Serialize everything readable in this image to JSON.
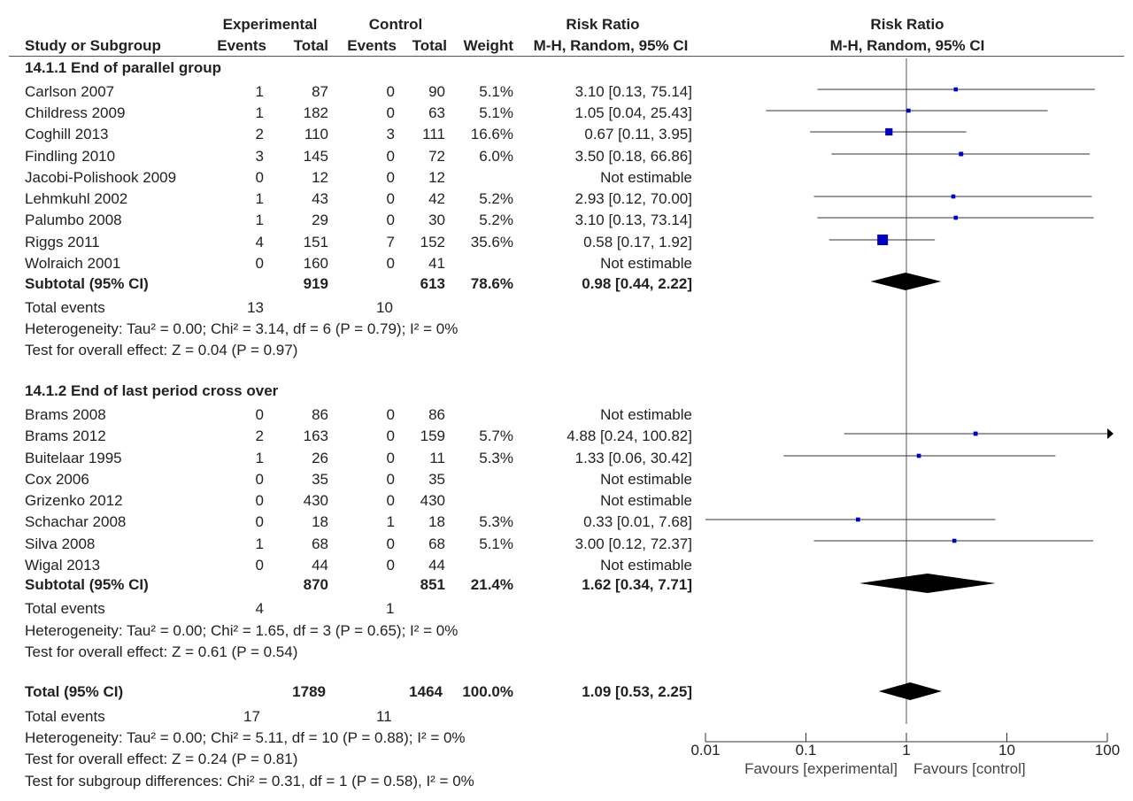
{
  "header": {
    "group1": "Experimental",
    "group2": "Control",
    "rr_title": "Risk Ratio",
    "rr_sub": "M-H, Random, 95% CI",
    "plot_title": "Risk Ratio",
    "plot_sub": "M-H, Random, 95% CI",
    "col_study": "Study or Subgroup",
    "col_e_events": "Events",
    "col_e_total": "Total",
    "col_c_events": "Events",
    "col_c_total": "Total",
    "col_weight": "Weight"
  },
  "subgroups": [
    {
      "title": "14.1.1 End of parallel group",
      "studies": [
        {
          "name": "Carlson 2007",
          "ee": "1",
          "et": "87",
          "ce": "0",
          "ct": "90",
          "w": "5.1%",
          "ci": "3.10 [0.13, 75.14]"
        },
        {
          "name": "Childress 2009",
          "ee": "1",
          "et": "182",
          "ce": "0",
          "ct": "63",
          "w": "5.1%",
          "ci": "1.05 [0.04, 25.43]"
        },
        {
          "name": "Coghill 2013",
          "ee": "2",
          "et": "110",
          "ce": "3",
          "ct": "111",
          "w": "16.6%",
          "ci": "0.67 [0.11, 3.95]"
        },
        {
          "name": "Findling 2010",
          "ee": "3",
          "et": "145",
          "ce": "0",
          "ct": "72",
          "w": "6.0%",
          "ci": "3.50 [0.18, 66.86]"
        },
        {
          "name": "Jacobi-Polishook 2009",
          "ee": "0",
          "et": "12",
          "ce": "0",
          "ct": "12",
          "w": "",
          "ci": "Not estimable"
        },
        {
          "name": "Lehmkuhl 2002",
          "ee": "1",
          "et": "43",
          "ce": "0",
          "ct": "42",
          "w": "5.2%",
          "ci": "2.93 [0.12, 70.00]"
        },
        {
          "name": "Palumbo 2008",
          "ee": "1",
          "et": "29",
          "ce": "0",
          "ct": "30",
          "w": "5.2%",
          "ci": "3.10 [0.13, 73.14]"
        },
        {
          "name": "Riggs 2011",
          "ee": "4",
          "et": "151",
          "ce": "7",
          "ct": "152",
          "w": "35.6%",
          "ci": "0.58 [0.17, 1.92]"
        },
        {
          "name": "Wolraich 2001",
          "ee": "0",
          "et": "160",
          "ce": "0",
          "ct": "41",
          "w": "",
          "ci": "Not estimable"
        }
      ],
      "subtotal": {
        "label": "Subtotal (95% CI)",
        "et": "919",
        "ct": "613",
        "w": "78.6%",
        "ci": "0.98 [0.44, 2.22]"
      },
      "events": {
        "label": "Total events",
        "e": "13",
        "c": "10"
      },
      "heterogeneity": "Heterogeneity: Tau² = 0.00; Chi² = 3.14, df = 6 (P = 0.79); I² = 0%",
      "overall": "Test for overall effect: Z = 0.04 (P = 0.97)"
    },
    {
      "title": "14.1.2 End of last period cross over",
      "studies": [
        {
          "name": "Brams 2008",
          "ee": "0",
          "et": "86",
          "ce": "0",
          "ct": "86",
          "w": "",
          "ci": "Not estimable"
        },
        {
          "name": "Brams 2012",
          "ee": "2",
          "et": "163",
          "ce": "0",
          "ct": "159",
          "w": "5.7%",
          "ci": "4.88 [0.24, 100.82]"
        },
        {
          "name": "Buitelaar 1995",
          "ee": "1",
          "et": "26",
          "ce": "0",
          "ct": "11",
          "w": "5.3%",
          "ci": "1.33 [0.06, 30.42]"
        },
        {
          "name": "Cox 2006",
          "ee": "0",
          "et": "35",
          "ce": "0",
          "ct": "35",
          "w": "",
          "ci": "Not estimable"
        },
        {
          "name": "Grizenko 2012",
          "ee": "0",
          "et": "430",
          "ce": "0",
          "ct": "430",
          "w": "",
          "ci": "Not estimable"
        },
        {
          "name": "Schachar 2008",
          "ee": "0",
          "et": "18",
          "ce": "1",
          "ct": "18",
          "w": "5.3%",
          "ci": "0.33 [0.01, 7.68]"
        },
        {
          "name": "Silva 2008",
          "ee": "1",
          "et": "68",
          "ce": "0",
          "ct": "68",
          "w": "5.1%",
          "ci": "3.00 [0.12, 72.37]"
        },
        {
          "name": "Wigal 2013",
          "ee": "0",
          "et": "44",
          "ce": "0",
          "ct": "44",
          "w": "",
          "ci": "Not estimable"
        }
      ],
      "subtotal": {
        "label": "Subtotal (95% CI)",
        "et": "870",
        "ct": "851",
        "w": "21.4%",
        "ci": "1.62 [0.34, 7.71]"
      },
      "events": {
        "label": "Total events",
        "e": "4",
        "c": "1"
      },
      "heterogeneity": "Heterogeneity: Tau² = 0.00; Chi² = 1.65, df = 3 (P = 0.65); I² = 0%",
      "overall": "Test for overall effect: Z = 0.61 (P = 0.54)"
    }
  ],
  "total": {
    "label": "Total (95% CI)",
    "et": "1789",
    "ct": "1464",
    "w": "100.0%",
    "ci": "1.09 [0.53, 2.25]"
  },
  "total_events": {
    "label": "Total events",
    "e": "17",
    "c": "11"
  },
  "total_heterogeneity": "Heterogeneity: Tau² = 0.00; Chi² = 5.11, df = 10 (P = 0.88); I² = 0%",
  "total_overall": "Test for overall effect: Z = 0.24 (P = 0.81)",
  "subgroup_diff": "Test for subgroup differences: Chi² = 0.31, df = 1 (P = 0.58), I² = 0%",
  "axis": {
    "ticks": [
      "0.01",
      "0.1",
      "1",
      "10",
      "100"
    ],
    "favours_left": "Favours [experimental]",
    "favours_right": "Favours [control]"
  },
  "colors": {
    "square": "#0000c0",
    "diamond": "#000000",
    "line": "#333333"
  },
  "chart_data": {
    "type": "scatter",
    "scale": "log",
    "xlim": [
      0.01,
      100
    ],
    "null_value": 1,
    "studies": [
      {
        "name": "Carlson 2007",
        "rr": 3.1,
        "lo": 0.13,
        "hi": 75.14,
        "weight": 5.1
      },
      {
        "name": "Childress 2009",
        "rr": 1.05,
        "lo": 0.04,
        "hi": 25.43,
        "weight": 5.1
      },
      {
        "name": "Coghill 2013",
        "rr": 0.67,
        "lo": 0.11,
        "hi": 3.95,
        "weight": 16.6
      },
      {
        "name": "Findling 2010",
        "rr": 3.5,
        "lo": 0.18,
        "hi": 66.86,
        "weight": 6.0
      },
      {
        "name": "Lehmkuhl 2002",
        "rr": 2.93,
        "lo": 0.12,
        "hi": 70.0,
        "weight": 5.2
      },
      {
        "name": "Palumbo 2008",
        "rr": 3.1,
        "lo": 0.13,
        "hi": 73.14,
        "weight": 5.2
      },
      {
        "name": "Riggs 2011",
        "rr": 0.58,
        "lo": 0.17,
        "hi": 1.92,
        "weight": 35.6
      },
      {
        "name": "Brams 2012",
        "rr": 4.88,
        "lo": 0.24,
        "hi": 100.82,
        "weight": 5.7
      },
      {
        "name": "Buitelaar 1995",
        "rr": 1.33,
        "lo": 0.06,
        "hi": 30.42,
        "weight": 5.3
      },
      {
        "name": "Schachar 2008",
        "rr": 0.33,
        "lo": 0.01,
        "hi": 7.68,
        "weight": 5.3
      },
      {
        "name": "Silva 2008",
        "rr": 3.0,
        "lo": 0.12,
        "hi": 72.37,
        "weight": 5.1
      }
    ],
    "pooled": [
      {
        "name": "Subtotal 14.1.1",
        "rr": 0.98,
        "lo": 0.44,
        "hi": 2.22
      },
      {
        "name": "Subtotal 14.1.2",
        "rr": 1.62,
        "lo": 0.34,
        "hi": 7.71
      },
      {
        "name": "Total",
        "rr": 1.09,
        "lo": 0.53,
        "hi": 2.25
      }
    ]
  }
}
